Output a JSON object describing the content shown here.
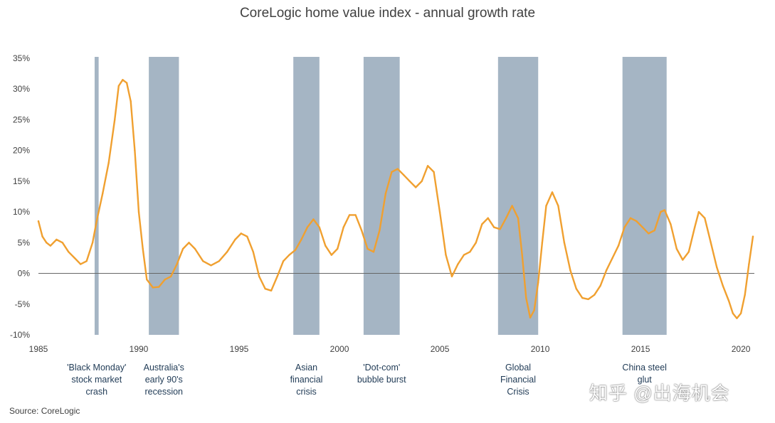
{
  "chart_data": {
    "type": "line",
    "title": "CoreLogic home value index - annual growth rate",
    "source": "Source: CoreLogic",
    "watermark": "知乎 @出海机会",
    "xlabel": "",
    "ylabel": "",
    "xlim": [
      1985,
      2020.6
    ],
    "ylim": [
      -10,
      35
    ],
    "x_ticks": [
      1985,
      1990,
      1995,
      2000,
      2005,
      2010,
      2015,
      2020
    ],
    "y_ticks": [
      {
        "value": -10,
        "label": "-10%"
      },
      {
        "value": -5,
        "label": "-5%"
      },
      {
        "value": 0,
        "label": "0%"
      },
      {
        "value": 5,
        "label": "5%"
      },
      {
        "value": 10,
        "label": "10%"
      },
      {
        "value": 15,
        "label": "15%"
      },
      {
        "value": 20,
        "label": "20%"
      },
      {
        "value": 25,
        "label": "25%"
      },
      {
        "value": 30,
        "label": "30%"
      },
      {
        "value": 35,
        "label": "35%"
      }
    ],
    "grid": false,
    "legend": "none",
    "colors": {
      "line": "#f0a030",
      "band": "#8fa3b5",
      "axis": "#666666",
      "event_text": "#1f3a55"
    },
    "events": [
      {
        "label_lines": [
          "'Black Monday'",
          "stock market",
          "crash"
        ],
        "start": 1987.8,
        "end": 1988.0
      },
      {
        "label_lines": [
          "Australia's",
          "early 90's",
          "recession"
        ],
        "start": 1990.5,
        "end": 1992.0
      },
      {
        "label_lines": [
          "Asian",
          "financial",
          "crisis"
        ],
        "start": 1997.7,
        "end": 1999.0
      },
      {
        "label_lines": [
          "'Dot-com'",
          "bubble burst"
        ],
        "start": 2001.2,
        "end": 2003.0
      },
      {
        "label_lines": [
          "Global",
          "Financial",
          "Crisis"
        ],
        "start": 2007.9,
        "end": 2009.9
      },
      {
        "label_lines": [
          "China steel",
          "glut"
        ],
        "start": 2014.1,
        "end": 2016.3
      }
    ],
    "series": [
      {
        "values": [
          [
            1985.0,
            8.5
          ],
          [
            1985.2,
            6.0
          ],
          [
            1985.4,
            5.0
          ],
          [
            1985.6,
            4.5
          ],
          [
            1985.9,
            5.5
          ],
          [
            1986.2,
            5.0
          ],
          [
            1986.5,
            3.5
          ],
          [
            1986.8,
            2.5
          ],
          [
            1987.1,
            1.5
          ],
          [
            1987.4,
            2.0
          ],
          [
            1987.7,
            5.0
          ],
          [
            1987.9,
            8.5
          ],
          [
            1988.2,
            13.0
          ],
          [
            1988.5,
            18.0
          ],
          [
            1988.8,
            25.0
          ],
          [
            1989.0,
            30.5
          ],
          [
            1989.2,
            31.5
          ],
          [
            1989.4,
            31.0
          ],
          [
            1989.6,
            28.0
          ],
          [
            1989.8,
            20.0
          ],
          [
            1990.0,
            10.0
          ],
          [
            1990.2,
            4.0
          ],
          [
            1990.4,
            -1.0
          ],
          [
            1990.7,
            -2.3
          ],
          [
            1991.0,
            -2.2
          ],
          [
            1991.3,
            -1.0
          ],
          [
            1991.6,
            -0.5
          ],
          [
            1991.9,
            1.5
          ],
          [
            1992.2,
            4.0
          ],
          [
            1992.5,
            5.0
          ],
          [
            1992.8,
            4.0
          ],
          [
            1993.2,
            2.0
          ],
          [
            1993.6,
            1.3
          ],
          [
            1994.0,
            2.0
          ],
          [
            1994.4,
            3.5
          ],
          [
            1994.8,
            5.5
          ],
          [
            1995.1,
            6.5
          ],
          [
            1995.4,
            6.0
          ],
          [
            1995.7,
            3.5
          ],
          [
            1996.0,
            -0.5
          ],
          [
            1996.3,
            -2.5
          ],
          [
            1996.6,
            -2.8
          ],
          [
            1996.9,
            -0.5
          ],
          [
            1997.2,
            2.0
          ],
          [
            1997.5,
            3.0
          ],
          [
            1997.8,
            3.8
          ],
          [
            1998.1,
            5.5
          ],
          [
            1998.4,
            7.5
          ],
          [
            1998.7,
            8.8
          ],
          [
            1999.0,
            7.5
          ],
          [
            1999.3,
            4.5
          ],
          [
            1999.6,
            3.0
          ],
          [
            1999.9,
            4.0
          ],
          [
            2000.2,
            7.5
          ],
          [
            2000.5,
            9.5
          ],
          [
            2000.8,
            9.5
          ],
          [
            2001.1,
            7.0
          ],
          [
            2001.4,
            4.0
          ],
          [
            2001.7,
            3.5
          ],
          [
            2002.0,
            7.0
          ],
          [
            2002.3,
            13.0
          ],
          [
            2002.6,
            16.5
          ],
          [
            2002.9,
            17.0
          ],
          [
            2003.2,
            16.0
          ],
          [
            2003.5,
            15.0
          ],
          [
            2003.8,
            14.0
          ],
          [
            2004.1,
            15.0
          ],
          [
            2004.4,
            17.5
          ],
          [
            2004.7,
            16.5
          ],
          [
            2005.0,
            10.0
          ],
          [
            2005.3,
            3.0
          ],
          [
            2005.6,
            -0.5
          ],
          [
            2005.9,
            1.5
          ],
          [
            2006.2,
            3.0
          ],
          [
            2006.5,
            3.5
          ],
          [
            2006.8,
            5.0
          ],
          [
            2007.1,
            8.0
          ],
          [
            2007.4,
            9.0
          ],
          [
            2007.7,
            7.5
          ],
          [
            2008.0,
            7.2
          ],
          [
            2008.3,
            9.0
          ],
          [
            2008.6,
            11.0
          ],
          [
            2008.9,
            9.0
          ],
          [
            2009.1,
            3.0
          ],
          [
            2009.3,
            -4.0
          ],
          [
            2009.5,
            -7.2
          ],
          [
            2009.7,
            -6.0
          ],
          [
            2009.9,
            -1.5
          ],
          [
            2010.1,
            5.0
          ],
          [
            2010.3,
            11.0
          ],
          [
            2010.6,
            13.2
          ],
          [
            2010.9,
            11.0
          ],
          [
            2011.2,
            5.0
          ],
          [
            2011.5,
            0.5
          ],
          [
            2011.8,
            -2.5
          ],
          [
            2012.1,
            -4.0
          ],
          [
            2012.4,
            -4.2
          ],
          [
            2012.7,
            -3.5
          ],
          [
            2013.0,
            -2.0
          ],
          [
            2013.3,
            0.5
          ],
          [
            2013.6,
            2.5
          ],
          [
            2013.9,
            4.5
          ],
          [
            2014.2,
            7.5
          ],
          [
            2014.5,
            9.0
          ],
          [
            2014.8,
            8.5
          ],
          [
            2015.1,
            7.5
          ],
          [
            2015.4,
            6.5
          ],
          [
            2015.7,
            7.0
          ],
          [
            2016.0,
            10.0
          ],
          [
            2016.2,
            10.3
          ],
          [
            2016.5,
            8.0
          ],
          [
            2016.8,
            4.0
          ],
          [
            2017.1,
            2.2
          ],
          [
            2017.4,
            3.5
          ],
          [
            2017.7,
            7.5
          ],
          [
            2017.9,
            10.0
          ],
          [
            2018.2,
            9.0
          ],
          [
            2018.5,
            5.0
          ],
          [
            2018.8,
            1.0
          ],
          [
            2019.1,
            -2.0
          ],
          [
            2019.4,
            -4.5
          ],
          [
            2019.6,
            -6.5
          ],
          [
            2019.8,
            -7.3
          ],
          [
            2020.0,
            -6.5
          ],
          [
            2020.2,
            -3.5
          ],
          [
            2020.4,
            1.5
          ],
          [
            2020.6,
            6.0
          ]
        ]
      }
    ]
  }
}
